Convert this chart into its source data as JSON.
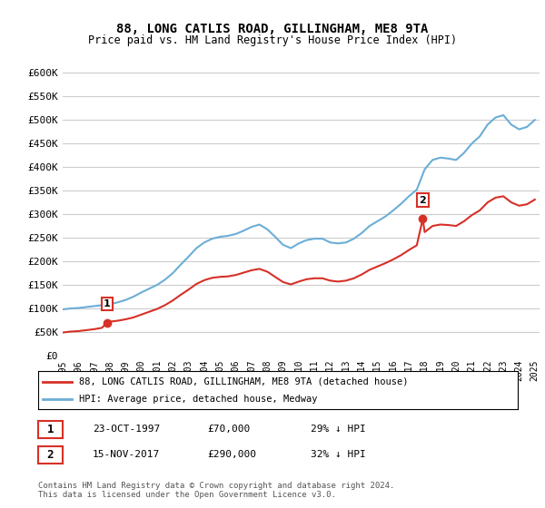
{
  "title": "88, LONG CATLIS ROAD, GILLINGHAM, ME8 9TA",
  "subtitle": "Price paid vs. HM Land Registry's House Price Index (HPI)",
  "legend_line1": "88, LONG CATLIS ROAD, GILLINGHAM, ME8 9TA (detached house)",
  "legend_line2": "HPI: Average price, detached house, Medway",
  "annotation1_label": "1",
  "annotation1_date": "23-OCT-1997",
  "annotation1_price": "£70,000",
  "annotation1_hpi": "29% ↓ HPI",
  "annotation2_label": "2",
  "annotation2_date": "15-NOV-2017",
  "annotation2_price": "£290,000",
  "annotation2_hpi": "32% ↓ HPI",
  "footer": "Contains HM Land Registry data © Crown copyright and database right 2024.\nThis data is licensed under the Open Government Licence v3.0.",
  "hpi_color": "#6baed6",
  "price_color": "#d73027",
  "annotation_box_color": "#d73027",
  "background_color": "#ffffff",
  "plot_bg_color": "#ffffff",
  "grid_color": "#cccccc",
  "ylim": [
    0,
    625000
  ],
  "yticks": [
    0,
    50000,
    100000,
    150000,
    200000,
    250000,
    300000,
    350000,
    400000,
    450000,
    500000,
    550000,
    600000
  ],
  "ytick_labels": [
    "£0",
    "£50K",
    "£100K",
    "£150K",
    "£200K",
    "£250K",
    "£300K",
    "£350K",
    "£400K",
    "£450K",
    "£500K",
    "£550K",
    "£600K"
  ],
  "sale1_x": 1997.81,
  "sale1_y": 70000,
  "sale2_x": 2017.88,
  "sale2_y": 290000,
  "hpi_x": [
    1995.0,
    1995.5,
    1996.0,
    1996.5,
    1997.0,
    1997.5,
    1998.0,
    1998.5,
    1999.0,
    1999.5,
    2000.0,
    2000.5,
    2001.0,
    2001.5,
    2002.0,
    2002.5,
    2003.0,
    2003.5,
    2004.0,
    2004.5,
    2005.0,
    2005.5,
    2006.0,
    2006.5,
    2007.0,
    2007.5,
    2008.0,
    2008.5,
    2009.0,
    2009.5,
    2010.0,
    2010.5,
    2011.0,
    2011.5,
    2012.0,
    2012.5,
    2013.0,
    2013.5,
    2014.0,
    2014.5,
    2015.0,
    2015.5,
    2016.0,
    2016.5,
    2017.0,
    2017.5,
    2018.0,
    2018.5,
    2019.0,
    2019.5,
    2020.0,
    2020.5,
    2021.0,
    2021.5,
    2022.0,
    2022.5,
    2023.0,
    2023.5,
    2024.0,
    2024.5,
    2025.0
  ],
  "hpi_y": [
    98000,
    100000,
    101000,
    103000,
    105000,
    107000,
    109000,
    113000,
    118000,
    125000,
    134000,
    142000,
    150000,
    161000,
    175000,
    193000,
    210000,
    228000,
    240000,
    248000,
    252000,
    254000,
    258000,
    265000,
    273000,
    278000,
    268000,
    252000,
    235000,
    228000,
    238000,
    245000,
    248000,
    248000,
    240000,
    238000,
    240000,
    248000,
    260000,
    275000,
    285000,
    295000,
    308000,
    322000,
    338000,
    352000,
    395000,
    415000,
    420000,
    418000,
    415000,
    430000,
    450000,
    465000,
    490000,
    505000,
    510000,
    490000,
    480000,
    485000,
    500000
  ],
  "price_x": [
    1995.0,
    1995.5,
    1996.0,
    1996.5,
    1997.0,
    1997.5,
    1997.81,
    1998.0,
    1998.5,
    1999.0,
    1999.5,
    2000.0,
    2000.5,
    2001.0,
    2001.5,
    2002.0,
    2002.5,
    2003.0,
    2003.5,
    2004.0,
    2004.5,
    2005.0,
    2005.5,
    2006.0,
    2006.5,
    2007.0,
    2007.5,
    2008.0,
    2008.5,
    2009.0,
    2009.5,
    2010.0,
    2010.5,
    2011.0,
    2011.5,
    2012.0,
    2012.5,
    2013.0,
    2013.5,
    2014.0,
    2014.5,
    2015.0,
    2015.5,
    2016.0,
    2016.5,
    2017.0,
    2017.5,
    2017.88,
    2018.0,
    2018.5,
    2019.0,
    2019.5,
    2020.0,
    2020.5,
    2021.0,
    2021.5,
    2022.0,
    2022.5,
    2023.0,
    2023.5,
    2024.0,
    2024.5,
    2025.0
  ],
  "price_y": [
    49000,
    51000,
    52000,
    54000,
    56000,
    59000,
    70000,
    72000,
    74000,
    77000,
    81000,
    87000,
    93000,
    99000,
    107000,
    117000,
    129000,
    140000,
    152000,
    160000,
    165000,
    167000,
    168000,
    171000,
    176000,
    181000,
    184000,
    178000,
    167000,
    156000,
    151000,
    157000,
    162000,
    164000,
    164000,
    159000,
    157000,
    159000,
    164000,
    172000,
    182000,
    189000,
    196000,
    204000,
    213000,
    224000,
    234000,
    290000,
    262000,
    275000,
    278000,
    277000,
    275000,
    285000,
    298000,
    308000,
    325000,
    335000,
    338000,
    325000,
    318000,
    321000,
    331000
  ],
  "xticks": [
    1995,
    1996,
    1997,
    1998,
    1999,
    2000,
    2001,
    2002,
    2003,
    2004,
    2005,
    2006,
    2007,
    2008,
    2009,
    2010,
    2011,
    2012,
    2013,
    2014,
    2015,
    2016,
    2017,
    2018,
    2019,
    2020,
    2021,
    2022,
    2023,
    2024,
    2025
  ]
}
